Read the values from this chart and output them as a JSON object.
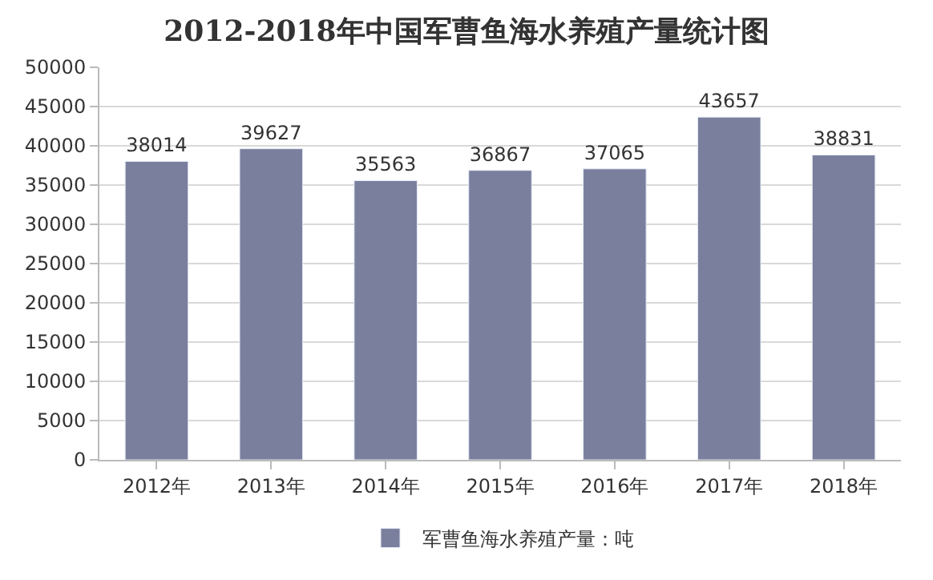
{
  "chart_data": {
    "type": "bar",
    "title": "2012-2018年中国军曹鱼海水养殖产量统计图",
    "categories": [
      "2012年",
      "2013年",
      "2014年",
      "2015年",
      "2016年",
      "2017年",
      "2018年"
    ],
    "series": [
      {
        "name": "军曹鱼海水养殖产量：吨",
        "color": "#7b7f9e",
        "values": [
          38014,
          39627,
          35563,
          36867,
          37065,
          43657,
          38831
        ]
      }
    ],
    "ylim": [
      0,
      50000
    ],
    "yticks": [
      0,
      5000,
      10000,
      15000,
      20000,
      25000,
      30000,
      35000,
      40000,
      45000,
      50000
    ],
    "grid": "y",
    "legend": "bottom",
    "data_labels": true
  }
}
